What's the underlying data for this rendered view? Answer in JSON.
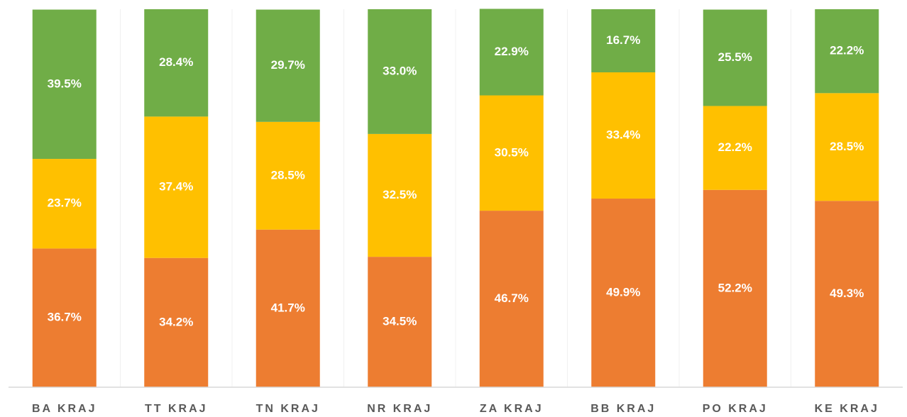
{
  "chart_data": {
    "type": "stacked_bar",
    "categories": [
      "BA KRAJ",
      "TT KRAJ",
      "TN KRAJ",
      "NR KRAJ",
      "ZA KRAJ",
      "BB KRAJ",
      "PO KRAJ",
      "KE KRAJ"
    ],
    "series": [
      {
        "color": "#ed7d31",
        "values": [
          36.7,
          34.2,
          41.7,
          34.5,
          46.7,
          49.9,
          52.2,
          49.3
        ],
        "value_labels": [
          "36.7%",
          "34.2%",
          "41.7%",
          "34.5%",
          "46.7%",
          "49.9%",
          "52.2%",
          "49.3%"
        ]
      },
      {
        "color": "#ffc000",
        "values": [
          23.7,
          37.4,
          28.5,
          32.5,
          30.5,
          33.4,
          22.2,
          28.5
        ],
        "value_labels": [
          "23.7%",
          "37.4%",
          "28.5%",
          "32.5%",
          "30.5%",
          "33.4%",
          "22.2%",
          "28.5%"
        ]
      },
      {
        "color": "#70ad47",
        "values": [
          39.5,
          28.4,
          29.7,
          33.0,
          22.9,
          16.7,
          25.5,
          22.2
        ],
        "value_labels": [
          "39.5%",
          "28.4%",
          "29.7%",
          "33.0%",
          "22.9%",
          "16.7%",
          "25.5%",
          "22.2%"
        ]
      }
    ],
    "ylim": [
      0,
      100
    ]
  }
}
